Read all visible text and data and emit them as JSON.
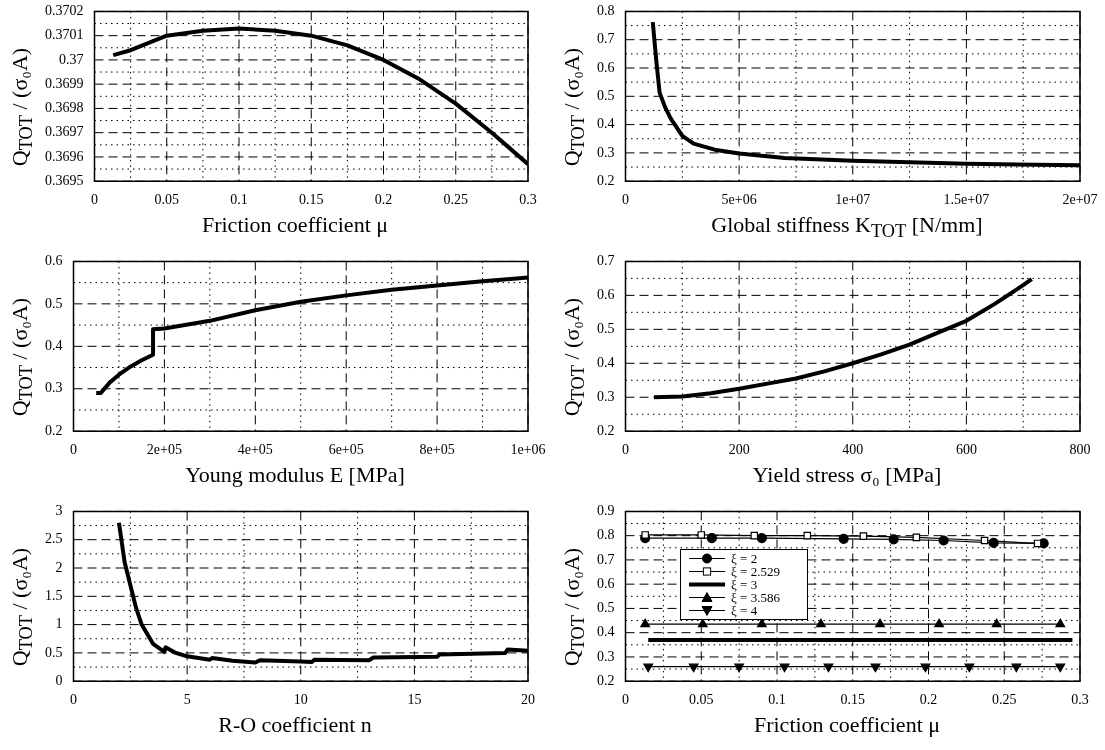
{
  "chart_data": [
    {
      "type": "line",
      "xlabel": "Friction coefficient μ",
      "ylabel": "Q$_{TOT}$ / (σ₀A)",
      "grid": true,
      "xlim": [
        0,
        0.3
      ],
      "xticks": [
        0,
        {
          "value": 0.025,
          "label": null
        },
        0.05,
        {
          "value": 0.075,
          "label": null
        },
        0.1,
        {
          "value": 0.125,
          "label": null
        },
        0.15,
        {
          "value": 0.175,
          "label": null
        },
        0.2,
        {
          "value": 0.225,
          "label": null
        },
        0.25,
        {
          "value": 0.275,
          "label": null
        },
        0.3
      ],
      "ylim": [
        0.3695,
        0.3702
      ],
      "yticks": [
        0.3695,
        {
          "value": 0.36955,
          "label": null
        },
        0.3696,
        {
          "value": 0.36965,
          "label": null
        },
        0.3697,
        {
          "value": 0.36975,
          "label": null
        },
        0.3698,
        {
          "value": 0.36985,
          "label": null
        },
        0.3699,
        {
          "value": 0.36995,
          "label": null
        },
        0.37,
        {
          "value": 0.37005,
          "label": null
        },
        0.3701,
        {
          "value": 0.37015,
          "label": null
        },
        0.3702
      ],
      "series": [
        {
          "color": "#000000",
          "x": [
            0.013,
            0.025,
            0.05,
            0.075,
            0.1,
            0.125,
            0.15,
            0.175,
            0.2,
            0.225,
            0.25,
            0.275,
            0.3
          ],
          "values": [
            0.37002,
            0.37004,
            0.3701,
            0.37012,
            0.37013,
            0.37012,
            0.3701,
            0.37006,
            0.37,
            0.36992,
            0.36982,
            0.3697,
            0.36957
          ]
        }
      ]
    },
    {
      "type": "line",
      "xlabel": "Global stiffness K$_{TOT}$ [N/mm]",
      "ylabel": "Q$_{TOT}$ / (σ₀A)",
      "grid": true,
      "xlim": [
        0,
        20000000
      ],
      "xticks": [
        0,
        {
          "value": 2500000,
          "label": null
        },
        {
          "value": 5000000,
          "label": "5e+06"
        },
        {
          "value": 7500000,
          "label": null
        },
        {
          "value": 10000000,
          "label": "1e+07"
        },
        {
          "value": 12500000,
          "label": null
        },
        {
          "value": 15000000,
          "label": "1.5e+07"
        },
        {
          "value": 17500000,
          "label": null
        },
        {
          "value": 20000000,
          "label": "2e+07"
        }
      ],
      "ylim": [
        0.2,
        0.8
      ],
      "yticks": [
        0.2,
        {
          "value": 0.25,
          "label": null
        },
        0.3,
        {
          "value": 0.35,
          "label": null
        },
        0.4,
        {
          "value": 0.45,
          "label": null
        },
        0.5,
        {
          "value": 0.55,
          "label": null
        },
        0.6,
        {
          "value": 0.65,
          "label": null
        },
        0.7,
        {
          "value": 0.75,
          "label": null
        },
        0.8
      ],
      "series": [
        {
          "color": "#000000",
          "x": [
            1200000,
            1350000,
            1500000,
            1750000,
            2000000,
            2500000,
            3000000,
            4000000,
            5000000,
            7000000,
            10000000,
            15000000,
            20000000
          ],
          "values": [
            0.762,
            0.63,
            0.513,
            0.46,
            0.42,
            0.36,
            0.333,
            0.31,
            0.298,
            0.282,
            0.272,
            0.262,
            0.256
          ]
        }
      ]
    },
    {
      "type": "line",
      "xlabel": "Young modulus E [MPa]",
      "ylabel": "Q$_{TOT}$ / (σ₀A)",
      "grid": true,
      "xlim": [
        0,
        1000000
      ],
      "xticks": [
        0,
        {
          "value": 100000,
          "label": null
        },
        {
          "value": 200000,
          "label": "2e+05"
        },
        {
          "value": 300000,
          "label": null
        },
        {
          "value": 400000,
          "label": "4e+05"
        },
        {
          "value": 500000,
          "label": null
        },
        {
          "value": 600000,
          "label": "6e+05"
        },
        {
          "value": 700000,
          "label": null
        },
        {
          "value": 800000,
          "label": "8e+05"
        },
        {
          "value": 900000,
          "label": null
        },
        {
          "value": 1000000,
          "label": "1e+06"
        }
      ],
      "ylim": [
        0.2,
        0.6
      ],
      "yticks": [
        0.2,
        {
          "value": 0.25,
          "label": null
        },
        0.3,
        {
          "value": 0.35,
          "label": null
        },
        0.4,
        {
          "value": 0.45,
          "label": null
        },
        0.5,
        {
          "value": 0.55,
          "label": null
        },
        0.6
      ],
      "series": [
        {
          "color": "#000000",
          "x": [
            50000,
            60000,
            80000,
            100000,
            125000,
            150000,
            175000,
            175000,
            200000,
            300000,
            400000,
            500000,
            600000,
            700000,
            800000,
            900000,
            1000000
          ],
          "values": [
            0.29,
            0.29,
            0.315,
            0.333,
            0.352,
            0.367,
            0.38,
            0.44,
            0.442,
            0.46,
            0.485,
            0.505,
            0.52,
            0.533,
            0.543,
            0.553,
            0.562
          ]
        }
      ]
    },
    {
      "type": "line",
      "xlabel": "Yield stress σ₀ [MPa]",
      "ylabel": "Q$_{TOT}$ / (σ₀A)",
      "grid": true,
      "xlim": [
        0,
        800
      ],
      "xticks": [
        0,
        {
          "value": 100,
          "label": null
        },
        200,
        {
          "value": 300,
          "label": null
        },
        400,
        {
          "value": 500,
          "label": null
        },
        600,
        {
          "value": 700,
          "label": null
        },
        800
      ],
      "ylim": [
        0.2,
        0.7
      ],
      "yticks": [
        0.2,
        {
          "value": 0.25,
          "label": null
        },
        0.3,
        {
          "value": 0.35,
          "label": null
        },
        0.4,
        {
          "value": 0.45,
          "label": null
        },
        0.5,
        {
          "value": 0.55,
          "label": null
        },
        0.6,
        {
          "value": 0.65,
          "label": null
        },
        0.7
      ],
      "series": [
        {
          "color": "#000000",
          "x": [
            50,
            100,
            150,
            200,
            250,
            300,
            350,
            400,
            450,
            500,
            550,
            600,
            650,
            700,
            715
          ],
          "values": [
            0.3,
            0.302,
            0.312,
            0.325,
            0.34,
            0.355,
            0.376,
            0.4,
            0.426,
            0.455,
            0.49,
            0.525,
            0.575,
            0.63,
            0.648
          ]
        }
      ]
    },
    {
      "type": "line",
      "xlabel": "R-O coefficient n",
      "ylabel": "Q$_{TOT}$ / (σ₀A)",
      "grid": true,
      "xlim": [
        0,
        20
      ],
      "xticks": [
        0,
        {
          "value": 2.5,
          "label": null
        },
        5,
        {
          "value": 7.5,
          "label": null
        },
        10,
        {
          "value": 12.5,
          "label": null
        },
        15,
        {
          "value": 17.5,
          "label": null
        },
        20
      ],
      "ylim": [
        0,
        3
      ],
      "yticks": [
        0,
        {
          "value": 0.25,
          "label": null
        },
        0.5,
        {
          "value": 0.75,
          "label": null
        },
        1,
        {
          "value": 1.25,
          "label": null
        },
        1.5,
        {
          "value": 1.75,
          "label": null
        },
        2,
        {
          "value": 2.25,
          "label": null
        },
        2.5,
        {
          "value": 2.75,
          "label": null
        },
        3
      ],
      "series": [
        {
          "color": "#000000",
          "x": [
            2,
            2.25,
            2.5,
            2.75,
            3,
            3.5,
            4,
            4.05,
            4.5,
            5,
            6,
            6.1,
            7,
            8,
            8.2,
            10,
            10.5,
            10.6,
            13,
            13.2,
            16,
            16.1,
            19,
            19.1,
            20
          ],
          "values": [
            2.8,
            2.1,
            1.7,
            1.3,
            1,
            0.66,
            0.52,
            0.6,
            0.5,
            0.44,
            0.38,
            0.41,
            0.36,
            0.33,
            0.37,
            0.35,
            0.34,
            0.38,
            0.37,
            0.42,
            0.43,
            0.47,
            0.5,
            0.56,
            0.54
          ]
        }
      ]
    },
    {
      "type": "line",
      "xlabel": "Friction coefficient μ",
      "ylabel": "Q$_{TOT}$ / (σ₀A)",
      "grid": true,
      "legend": "top left",
      "xlim": [
        0,
        0.3
      ],
      "xticks": [
        0,
        {
          "value": 0.025,
          "label": null
        },
        0.05,
        {
          "value": 0.075,
          "label": null
        },
        0.1,
        {
          "value": 0.125,
          "label": null
        },
        0.15,
        {
          "value": 0.175,
          "label": null
        },
        0.2,
        {
          "value": 0.225,
          "label": null
        },
        0.25,
        {
          "value": 0.275,
          "label": null
        },
        0.3
      ],
      "ylim": [
        0.2,
        0.9
      ],
      "yticks": [
        0.2,
        {
          "value": 0.25,
          "label": null
        },
        0.3,
        {
          "value": 0.35,
          "label": null
        },
        0.4,
        {
          "value": 0.45,
          "label": null
        },
        0.5,
        {
          "value": 0.55,
          "label": null
        },
        0.6,
        {
          "value": 0.65,
          "label": null
        },
        0.7,
        {
          "value": 0.75,
          "label": null
        },
        0.8,
        {
          "value": 0.85,
          "label": null
        },
        0.9
      ],
      "series": [
        {
          "name": "ξ = 2",
          "color": "#000000",
          "marker": "circle",
          "x": [
            0.013,
            0.057,
            0.09,
            0.144,
            0.177,
            0.21,
            0.243,
            0.276
          ],
          "values": [
            0.79,
            0.79,
            0.79,
            0.787,
            0.785,
            0.78,
            0.77,
            0.768
          ]
        },
        {
          "name": "ξ = 2.529",
          "color": "#000000",
          "marker": "square",
          "x": [
            0.013,
            0.05,
            0.085,
            0.12,
            0.157,
            0.192,
            0.237,
            0.272
          ],
          "values": [
            0.803,
            0.803,
            0.8,
            0.8,
            0.798,
            0.793,
            0.78,
            0.768
          ]
        },
        {
          "name": "ξ = 3",
          "color": "#000000",
          "marker": "none",
          "x": [
            0.015,
            0.295
          ],
          "values": [
            0.37,
            0.37
          ]
        },
        {
          "name": "ξ = 3.586",
          "color": "#000000",
          "marker": "triangle",
          "x": [
            0.013,
            0.051,
            0.09,
            0.129,
            0.168,
            0.207,
            0.245,
            0.287
          ],
          "values": [
            0.435,
            0.435,
            0.435,
            0.435,
            0.435,
            0.435,
            0.435,
            0.435
          ]
        },
        {
          "name": "ξ = 4",
          "color": "#000000",
          "marker": "triangle-down",
          "x": [
            0.015,
            0.045,
            0.075,
            0.105,
            0.134,
            0.165,
            0.198,
            0.227,
            0.258,
            0.287
          ],
          "values": [
            0.26,
            0.26,
            0.26,
            0.26,
            0.26,
            0.26,
            0.26,
            0.26,
            0.26,
            0.26
          ]
        }
      ]
    }
  ]
}
